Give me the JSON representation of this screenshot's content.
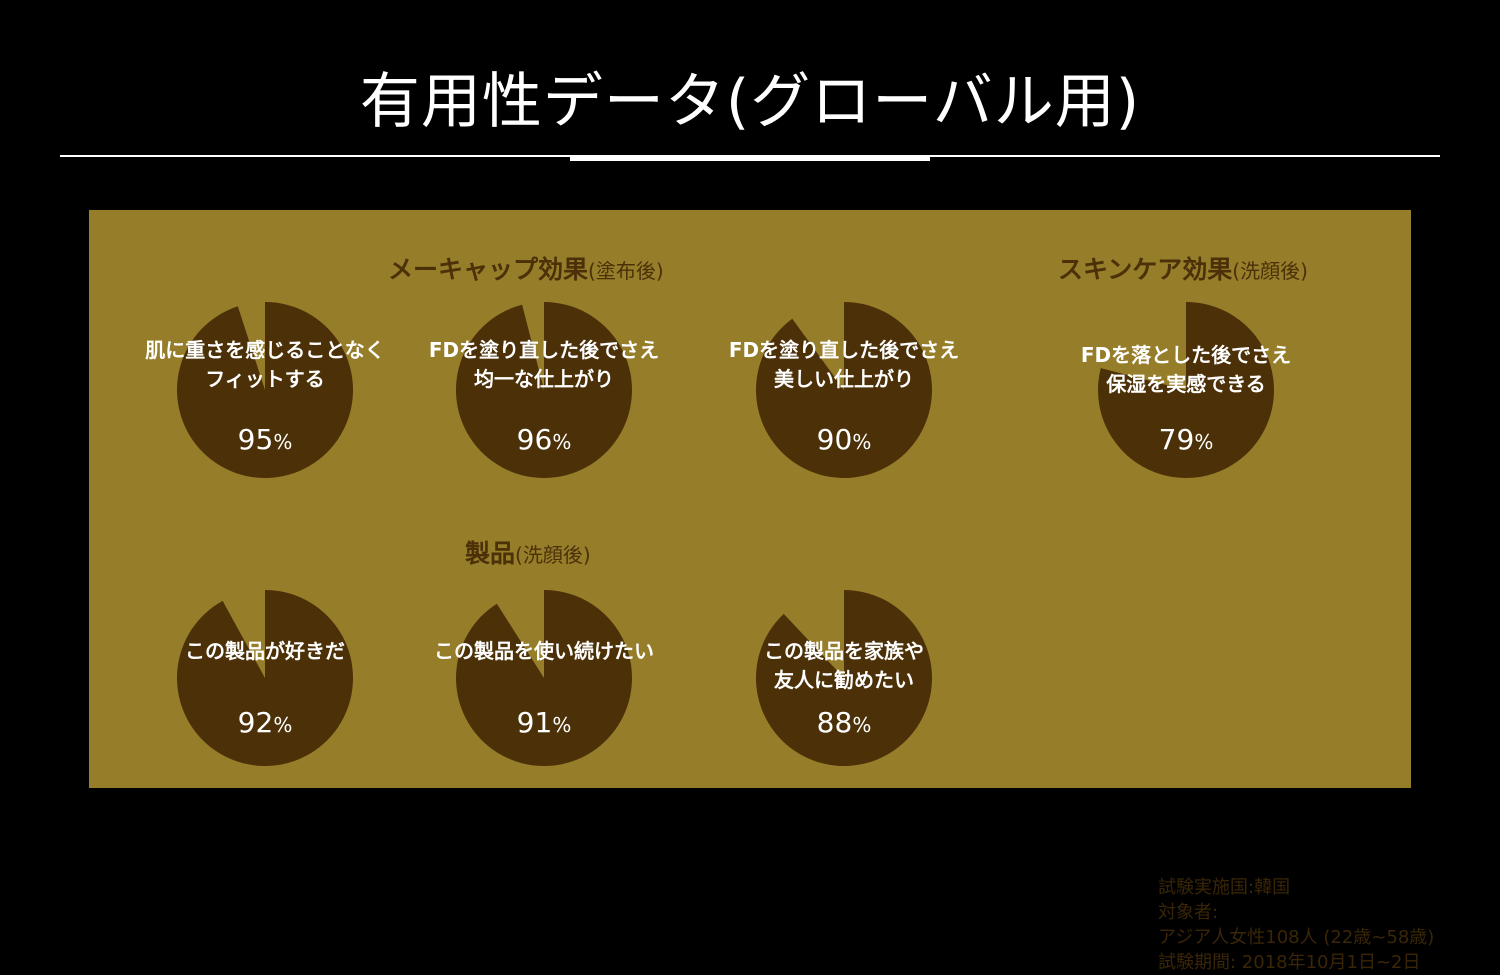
{
  "title": "有用性データ(グローバル用)",
  "colors": {
    "background": "#000000",
    "panel": "#967d2a",
    "pie_fill": "#4b3008",
    "heading": "#4b3008",
    "note_text": "#3a2606",
    "label_text": "#ffffff"
  },
  "sections": {
    "makeup": {
      "title": "メーキャップ効果",
      "sub": "(塗布後)"
    },
    "skincare": {
      "title": "スキンケア効果",
      "sub": "(洗顔後)"
    },
    "product": {
      "title": "製品",
      "sub": "(洗顔後)"
    }
  },
  "chart_data": [
    {
      "type": "pie",
      "label": "肌に重さを感じることなく\nフィットする",
      "values": [
        95,
        5
      ],
      "unit": "%"
    },
    {
      "type": "pie",
      "label": "FDを塗り直した後でさえ\n均一な仕上がり",
      "values": [
        96,
        4
      ],
      "unit": "%"
    },
    {
      "type": "pie",
      "label": "FDを塗り直した後でさえ\n美しい仕上がり",
      "values": [
        90,
        10
      ],
      "unit": "%"
    },
    {
      "type": "pie",
      "label": "FDを落とした後でさえ\n保湿を実感できる",
      "values": [
        79,
        21
      ],
      "unit": "%"
    },
    {
      "type": "pie",
      "label": "この製品が好きだ",
      "values": [
        92,
        8
      ],
      "unit": "%"
    },
    {
      "type": "pie",
      "label": "この製品を使い続けたい",
      "values": [
        91,
        9
      ],
      "unit": "%"
    },
    {
      "type": "pie",
      "label": "この製品を家族や\n友人に勧めたい",
      "values": [
        88,
        12
      ],
      "unit": "%"
    }
  ],
  "study_note": {
    "country": "試験実施国:韓国",
    "subjects_label": "対象者:",
    "subjects": "アジア人女性108人 (22歳~58歳)",
    "period": "試験期間: 2018年10月1日~2日"
  }
}
